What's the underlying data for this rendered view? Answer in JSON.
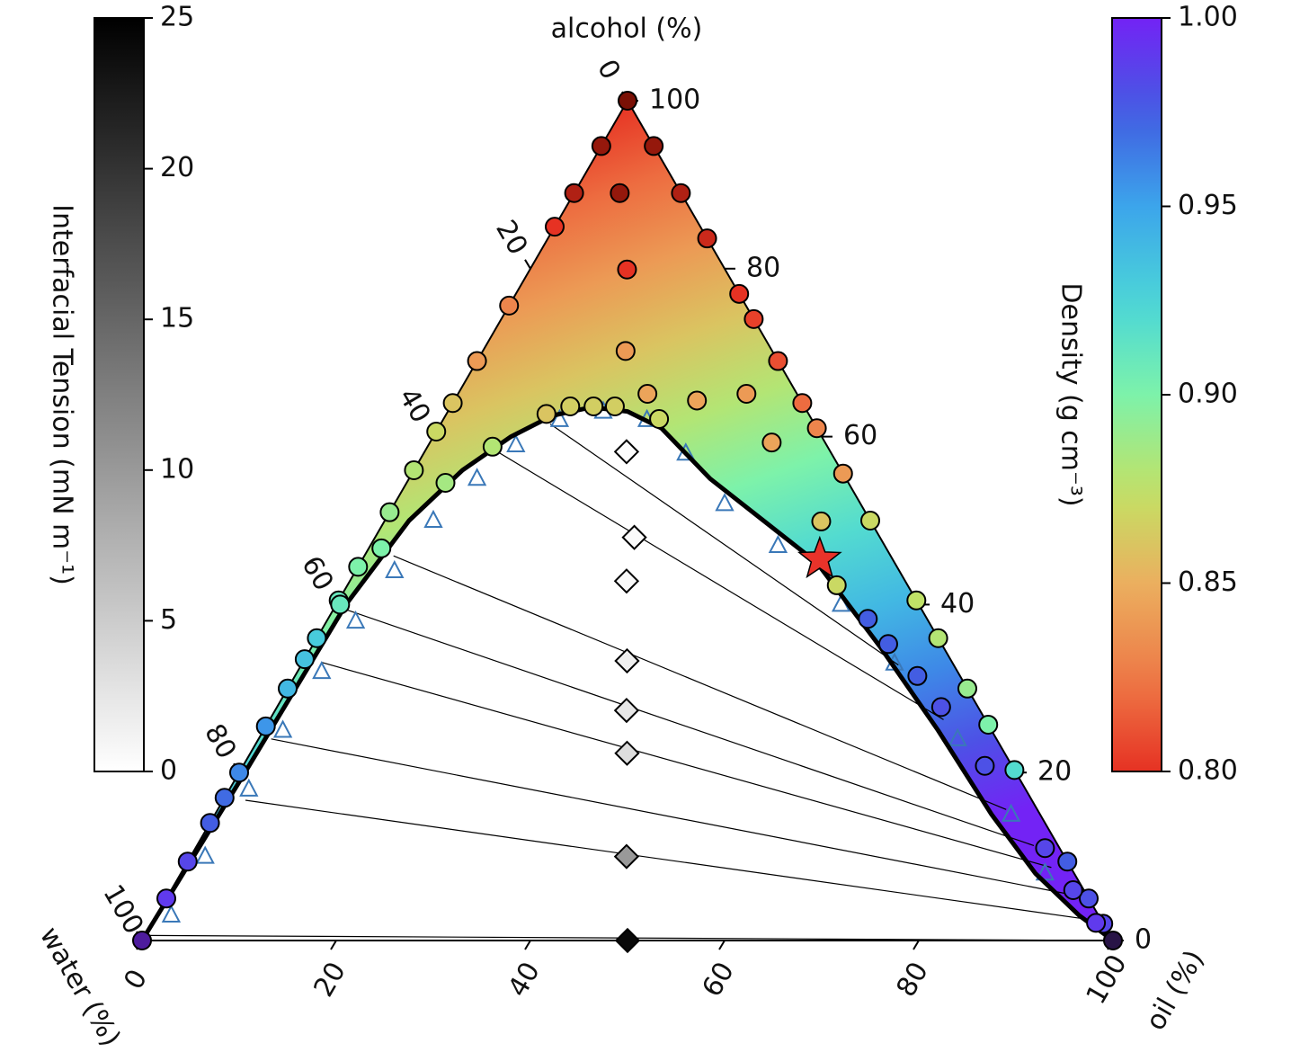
{
  "chart_data": {
    "type": "ternary",
    "axes": {
      "alcohol": {
        "label": "alcohol (%)",
        "ticks": [
          0,
          20,
          40,
          60,
          80,
          100
        ]
      },
      "water": {
        "label": "water (%)",
        "ticks": [
          0,
          20,
          40,
          60,
          80,
          100
        ]
      },
      "oil": {
        "label": "oil (%)",
        "ticks": [
          0,
          20,
          40,
          60,
          80,
          100
        ]
      }
    },
    "compositions": {
      "alcohol": [
        100,
        94.6,
        89,
        83.6,
        77,
        74,
        69,
        64,
        61,
        55.6,
        50,
        40.5,
        36,
        30,
        25.7,
        20.3,
        9.4,
        5,
        2,
        0,
        94.6,
        89,
        85,
        75.6,
        69,
        64,
        60.6,
        56,
        51,
        44.5,
        40.5,
        36,
        33.5,
        30,
        25.5,
        20,
        17,
        14,
        9.4,
        5,
        0,
        89,
        79.9,
        70.2,
        65.1,
        64.3,
        65.1,
        59.3,
        49.9,
        42.3,
        62.7,
        63.6,
        63.6,
        63.6,
        62.1,
        58.8,
        54.5,
        46.7,
        40,
        38.3,
        35.3,
        31.5,
        27.8,
        20.8,
        11,
        6,
        2.1
      ],
      "oil": [
        0,
        5.4,
        11,
        16.4,
        23,
        26,
        31,
        36,
        39,
        44.4,
        50,
        59.5,
        64,
        70,
        74.3,
        79.7,
        90.6,
        95,
        98,
        100,
        0,
        0,
        0,
        0,
        0,
        0,
        0,
        0,
        0,
        0,
        0,
        0,
        0,
        0,
        0,
        0,
        0,
        0,
        0,
        0,
        0,
        4.7,
        10,
        14.7,
        19.5,
        25,
        29.7,
        35.2,
        45,
        50.4,
        10.3,
        12.3,
        14.7,
        16.9,
        22.2,
        6.7,
        4,
        1.3,
        0.4,
        55.6,
        59.2,
        64.1,
        68.4,
        76.4,
        87.5,
        92.9,
        97.2
      ],
      "density": [
        0.78,
        0.785,
        0.79,
        0.795,
        0.8,
        0.805,
        0.81,
        0.82,
        0.83,
        0.84,
        0.87,
        0.875,
        0.88,
        0.89,
        0.9,
        0.92,
        0.975,
        0.98,
        0.985,
        1.02,
        0.785,
        0.79,
        0.8,
        0.83,
        0.84,
        0.86,
        0.87,
        0.88,
        0.89,
        0.9,
        0.91,
        0.93,
        0.935,
        0.94,
        0.955,
        0.96,
        0.97,
        0.975,
        0.985,
        0.99,
        1.01,
        0.785,
        0.8,
        0.84,
        0.845,
        0.845,
        0.84,
        0.845,
        0.86,
        0.87,
        0.86,
        0.865,
        0.865,
        0.865,
        0.87,
        0.88,
        0.885,
        0.9,
        0.91,
        0.975,
        0.975,
        0.975,
        0.98,
        0.98,
        0.985,
        0.985,
        0.99
      ]
    },
    "binodal": {
      "alcohol": [
        0,
        20,
        40,
        50,
        56,
        60,
        62.5,
        63.5,
        63,
        61,
        55,
        45,
        35,
        25,
        15,
        8,
        3,
        0
      ],
      "oil": [
        0,
        0.6,
        1,
        2.5,
        5,
        8,
        11,
        14.5,
        18.5,
        23,
        31,
        47,
        58.5,
        69.5,
        80,
        88,
        95,
        100
      ]
    },
    "binodal_measured": {
      "alcohol": [
        3,
        10,
        18,
        25,
        32,
        38,
        44,
        50,
        55,
        59,
        62,
        63,
        62,
        58,
        52,
        47,
        40,
        33,
        24,
        15,
        8
      ],
      "oil": [
        1.5,
        1.5,
        2,
        2,
        2.5,
        3,
        4,
        5,
        7,
        9,
        12,
        16,
        21,
        27,
        34,
        42,
        52,
        61,
        72,
        82,
        89
      ]
    },
    "tie_lines": [
      {
        "alcohol": [
          0.6,
          0
        ],
        "oil": [
          0.4,
          99.5
        ]
      },
      {
        "alcohol": [
          16.7,
          2.6
        ],
        "oil": [
          2.3,
          95.6
        ]
      },
      {
        "alcohol": [
          24,
          5.5
        ],
        "oil": [
          1.3,
          92.8
        ]
      },
      {
        "alcohol": [
          33.1,
          8.7
        ],
        "oil": [
          2,
          89.3
        ]
      },
      {
        "alcohol": [
          39.7,
          11.3
        ],
        "oil": [
          0.4,
          86.2
        ]
      },
      {
        "alcohol": [
          45.8,
          15.6
        ],
        "oil": [
          3,
          81.2
        ]
      },
      {
        "alcohol": [
          58.1,
          26.3
        ],
        "oil": [
          7.7,
          69.4
        ]
      },
      {
        "alcohol": [
          61.5,
          32.8
        ],
        "oil": [
          11.3,
          61.5
        ]
      }
    ],
    "ift": {
      "alcohol": [
        0,
        10,
        22.3,
        27.4,
        33.3,
        42.8,
        48,
        58.2
      ],
      "oil": [
        50,
        44.9,
        38.8,
        36.2,
        33.3,
        28.5,
        26.7,
        20.8
      ],
      "values": [
        24,
        10,
        3.3,
        2.5,
        1.6,
        0.6,
        0.4,
        0.2
      ]
    },
    "critical_point": {
      "alcohol": 45.4,
      "oil": 47.1,
      "color": "#e8332a"
    },
    "measured_color": "#3a78b8",
    "colorbars": [
      {
        "label": "Interfacial Tension (mN m⁻¹)",
        "lim": [
          0,
          25
        ],
        "ticks": [
          0,
          5,
          10,
          15,
          20,
          25
        ],
        "colormap": "gray_r"
      },
      {
        "label": "Density (g cm⁻³)",
        "lim": [
          0.8,
          1.0
        ],
        "ticks": [
          {
            "value": 0.8,
            "label": "0.80"
          },
          0.85,
          {
            "value": 0.9,
            "label": "0.90"
          },
          0.95,
          {
            "value": 1.0,
            "label": "1.00"
          }
        ],
        "colormap": "turbo_r"
      }
    ]
  }
}
